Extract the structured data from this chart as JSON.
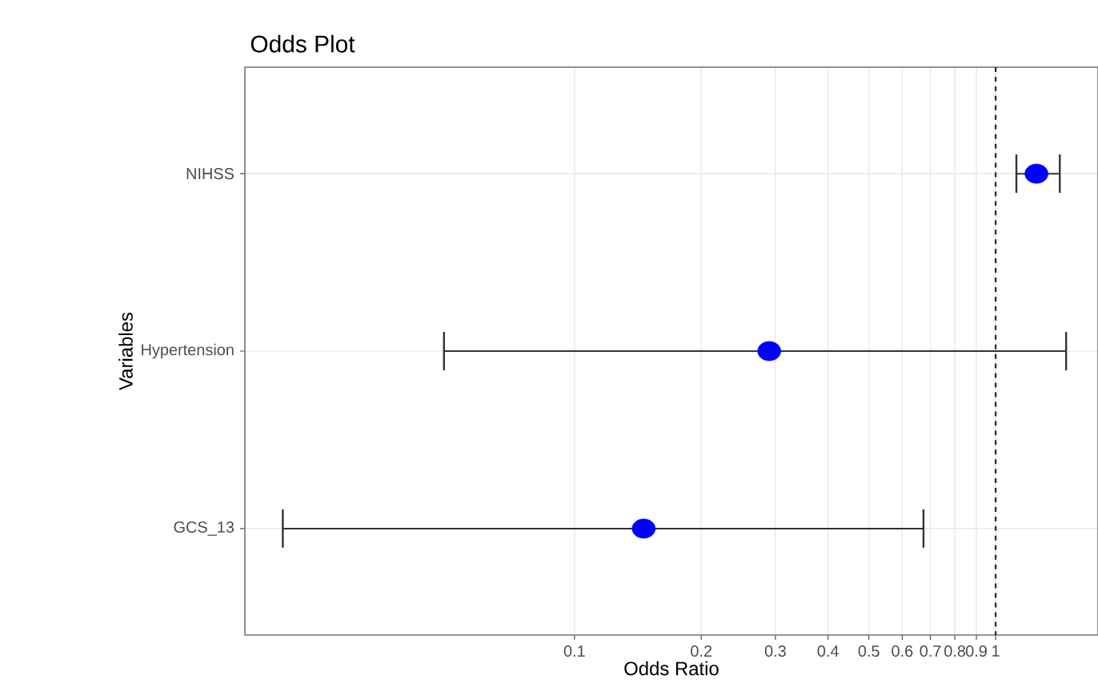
{
  "chart_data": {
    "type": "scatter",
    "title": "Odds Plot",
    "xlabel": "Odds Ratio",
    "ylabel": "Variables",
    "orientation": "horizontal",
    "categories": [
      "NIHSS",
      "Hypertension",
      "GCS_13"
    ],
    "series": [
      {
        "color": "#0000ff",
        "values": [
          1.25,
          0.29,
          0.146
        ],
        "errors": [
          [
            1.12,
            1.42
          ],
          [
            0.049,
            1.47
          ],
          [
            0.0203,
            0.674
          ]
        ]
      }
    ],
    "log": "x",
    "xlim": [
      0.0165,
      1.75
    ],
    "xticks": [
      0.1,
      0.2,
      0.3,
      0.4,
      0.5,
      0.6,
      0.7,
      0.8,
      0.9,
      1
    ],
    "ref_lines": [
      {
        "axis": "x",
        "value": 1,
        "line_style": "dashed",
        "color": "#333333"
      }
    ],
    "grid": true,
    "marker": "circle"
  }
}
